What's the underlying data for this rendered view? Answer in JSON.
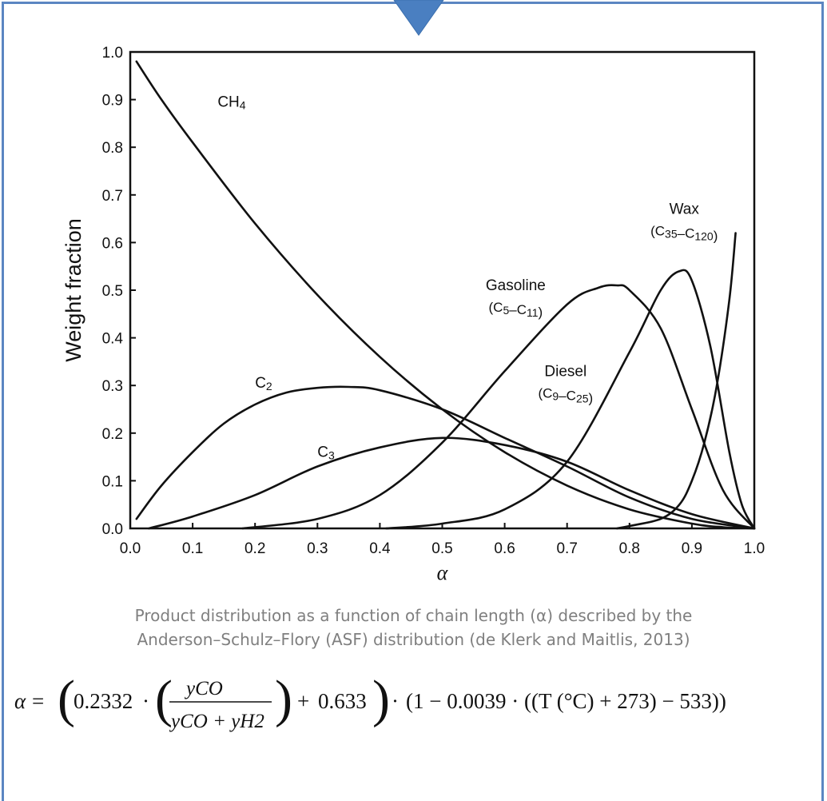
{
  "colors": {
    "frame": "#5b86c2",
    "pointer": "#4a7fc1",
    "ink": "#111111",
    "caption": "#7f7f7f"
  },
  "chart_data": {
    "type": "line",
    "xlabel": "α",
    "ylabel": "Weight fraction",
    "xlim": [
      0.0,
      1.0
    ],
    "ylim": [
      0.0,
      1.0
    ],
    "grid": false,
    "x_ticks": [
      "0.0",
      "0.1",
      "0.2",
      "0.3",
      "0.4",
      "0.5",
      "0.6",
      "0.7",
      "0.8",
      "0.9",
      "1.0"
    ],
    "y_ticks": [
      "0.0",
      "0.1",
      "0.2",
      "0.3",
      "0.4",
      "0.5",
      "0.6",
      "0.7",
      "0.8",
      "0.9",
      "1.0"
    ],
    "series": [
      {
        "name": "CH4",
        "x": [
          0.01,
          0.05,
          0.1,
          0.2,
          0.3,
          0.4,
          0.5,
          0.6,
          0.7,
          0.8,
          0.9,
          0.95,
          1.0
        ],
        "y": [
          0.98,
          0.9,
          0.81,
          0.64,
          0.49,
          0.36,
          0.25,
          0.16,
          0.09,
          0.04,
          0.01,
          0.0025,
          0.0
        ]
      },
      {
        "name": "C2",
        "x": [
          0.01,
          0.05,
          0.1,
          0.15,
          0.2,
          0.25,
          0.3,
          0.35,
          0.4,
          0.5,
          0.6,
          0.7,
          0.8,
          0.9,
          1.0
        ],
        "y": [
          0.02,
          0.09,
          0.16,
          0.22,
          0.26,
          0.285,
          0.295,
          0.297,
          0.29,
          0.25,
          0.19,
          0.13,
          0.065,
          0.02,
          0.0
        ]
      },
      {
        "name": "C3",
        "x": [
          0.03,
          0.1,
          0.2,
          0.3,
          0.4,
          0.5,
          0.6,
          0.7,
          0.8,
          0.9,
          1.0
        ],
        "y": [
          0.0,
          0.025,
          0.07,
          0.13,
          0.17,
          0.19,
          0.175,
          0.14,
          0.08,
          0.03,
          0.0
        ]
      },
      {
        "name": "Gasoline",
        "x": [
          0.18,
          0.3,
          0.4,
          0.5,
          0.6,
          0.7,
          0.75,
          0.78,
          0.8,
          0.85,
          0.9,
          0.95,
          1.0
        ],
        "y": [
          0.0,
          0.02,
          0.07,
          0.18,
          0.33,
          0.47,
          0.505,
          0.51,
          0.5,
          0.42,
          0.25,
          0.08,
          0.0
        ]
      },
      {
        "name": "Diesel",
        "x": [
          0.41,
          0.5,
          0.6,
          0.7,
          0.8,
          0.85,
          0.88,
          0.9,
          0.93,
          0.96,
          0.98,
          1.0
        ],
        "y": [
          0.0,
          0.01,
          0.04,
          0.14,
          0.37,
          0.5,
          0.54,
          0.52,
          0.38,
          0.16,
          0.05,
          0.0
        ]
      },
      {
        "name": "Wax",
        "x": [
          0.78,
          0.8,
          0.85,
          0.88,
          0.9,
          0.92,
          0.94,
          0.96,
          0.97
        ],
        "y": [
          0.0,
          0.005,
          0.02,
          0.05,
          0.1,
          0.18,
          0.3,
          0.48,
          0.62
        ]
      }
    ],
    "annotations": [
      {
        "text": "CH4",
        "x": 0.14,
        "y": 0.885
      },
      {
        "text": "C2",
        "x": 0.2,
        "y": 0.295
      },
      {
        "text": "C3",
        "x": 0.3,
        "y": 0.15
      },
      {
        "text": "Gasoline",
        "line1": "Gasoline",
        "line2": "(C5–C11)",
        "x": 0.56,
        "y": 0.5
      },
      {
        "text": "Diesel",
        "line1": "Diesel",
        "line2": "(C9–C25)",
        "x": 0.64,
        "y": 0.32
      },
      {
        "text": "Wax",
        "line1": "Wax",
        "line2": "(C35–C120)",
        "x": 0.83,
        "y": 0.66
      }
    ]
  },
  "caption": {
    "line1": "Product distribution as a function of chain length (α) described by the",
    "line2": "Anderson–Schulz–Flory (ASF) distribution (de Klerk and Maitlis, 2013)"
  },
  "formula": {
    "lhs": "α",
    "coef": "0.2332",
    "numer": "yCO",
    "denom": "yCO + yH2",
    "offset": "0.633",
    "correction": "(1 − 0.0039 · ((T (°C) + 273) − 533))"
  }
}
